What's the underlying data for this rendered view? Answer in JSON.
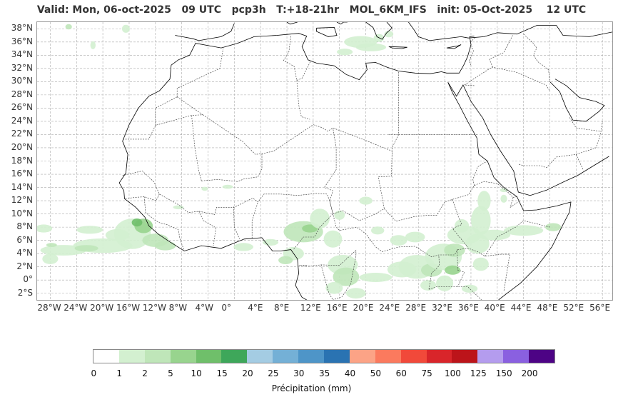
{
  "title": "Valid: Mon, 06-oct-2025   09 UTC   pcp3h   T:+18-21hr   MOL_6KM_IFS   init: 05-Oct-2025    12 UTC",
  "map": {
    "lat_labels": [
      "38°N",
      "36°N",
      "34°N",
      "32°N",
      "30°N",
      "28°N",
      "26°N",
      "24°N",
      "22°N",
      "20°N",
      "18°N",
      "16°N",
      "14°N",
      "12°N",
      "10°N",
      "8°N",
      "6°N",
      "4°N",
      "2°N",
      "0°",
      "2°S"
    ],
    "lon_labels": [
      "28°W",
      "24°W",
      "20°W",
      "16°W",
      "12°W",
      "8°W",
      "4°W",
      "0°",
      "4°E",
      "8°E",
      "12°E",
      "16°E",
      "20°E",
      "24°E",
      "28°E",
      "32°E",
      "36°E",
      "40°E",
      "44°E",
      "48°E",
      "52°E",
      "56°E"
    ],
    "extent": {
      "lon_min": -30,
      "lon_max": 57.5,
      "lat_min": -3,
      "lat_max": 39
    },
    "grid": true,
    "colors": {
      "coast": "#000000",
      "border": "#333333",
      "grid": "#aaaaaa"
    }
  },
  "colorbar": {
    "label": "Précipitation (mm)",
    "ticks": [
      "0",
      "1",
      "2",
      "5",
      "10",
      "15",
      "20",
      "25",
      "30",
      "35",
      "40",
      "50",
      "60",
      "75",
      "100",
      "125",
      "150",
      "200"
    ],
    "colors": [
      "#ffffff",
      "#d3f0d0",
      "#bfe6b9",
      "#98d48e",
      "#6fbf6a",
      "#3ea75a",
      "#a4cce3",
      "#74b0d6",
      "#4e95c8",
      "#2a73b2",
      "#fca386",
      "#fb7a5e",
      "#f1493a",
      "#d9252a",
      "#bc141a",
      "#b49cee",
      "#8a60e0",
      "#4d0385"
    ]
  }
}
